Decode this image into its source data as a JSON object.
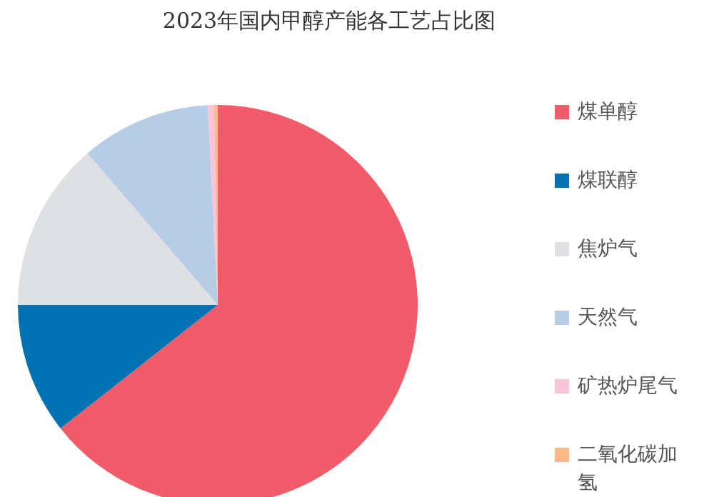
{
  "chart_data": {
    "type": "pie",
    "title": "2023年国内甲醇产能各工艺占比图",
    "categories": [
      "煤单醇",
      "煤联醇",
      "焦炉气",
      "天然气",
      "矿热炉尾气",
      "二氧化碳加氢"
    ],
    "values": [
      64.4,
      10.6,
      13.7,
      10.5,
      0.5,
      0.3
    ],
    "colors": [
      "#f25c6a",
      "#0072b2",
      "#dfe0e4",
      "#b7cde6",
      "#fbc3d9",
      "#fdb98a"
    ],
    "legend": "right"
  }
}
